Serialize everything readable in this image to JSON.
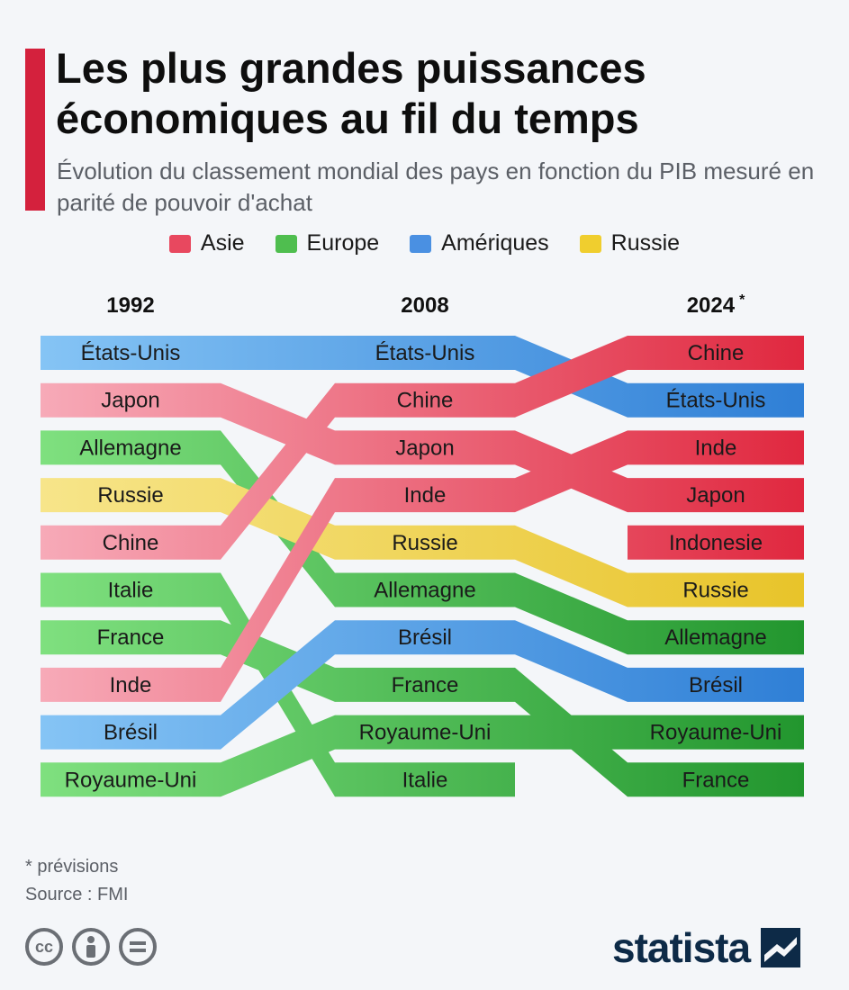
{
  "header": {
    "title": "Les plus grandes puissances économiques au fil du temps",
    "subtitle": "Évolution du classement mondial des pays en fonction du PIB mesuré en parité de pouvoir d'achat"
  },
  "legend": [
    {
      "label": "Asie",
      "color": "#e8485f"
    },
    {
      "label": "Europe",
      "color": "#4fbe4f"
    },
    {
      "label": "Amériques",
      "color": "#4a90e2"
    },
    {
      "label": "Russie",
      "color": "#f0ce2e"
    }
  ],
  "chart_data": {
    "type": "bump",
    "columns": [
      "1992",
      "2008",
      "2024"
    ],
    "column_markers": [
      "",
      "",
      "*"
    ],
    "regions": {
      "Asie": {
        "light": "#f7aab8",
        "dark": "#e0283f"
      },
      "Europe": {
        "light": "#7fe07f",
        "dark": "#22962e"
      },
      "Amériques": {
        "light": "#85c4f5",
        "dark": "#2f7fd6"
      },
      "Russie": {
        "light": "#f7e58a",
        "dark": "#e8c42a"
      }
    },
    "rankings": [
      {
        "name": "États-Unis",
        "region": "Amériques",
        "ranks": [
          1,
          1,
          2
        ]
      },
      {
        "name": "Japon",
        "region": "Asie",
        "ranks": [
          2,
          3,
          4
        ]
      },
      {
        "name": "Allemagne",
        "region": "Europe",
        "ranks": [
          3,
          6,
          7
        ]
      },
      {
        "name": "Russie",
        "region": "Russie",
        "ranks": [
          4,
          5,
          6
        ]
      },
      {
        "name": "Chine",
        "region": "Asie",
        "ranks": [
          5,
          2,
          1
        ]
      },
      {
        "name": "Italie",
        "region": "Europe",
        "ranks": [
          6,
          10,
          null
        ]
      },
      {
        "name": "France",
        "region": "Europe",
        "ranks": [
          7,
          8,
          10
        ]
      },
      {
        "name": "Inde",
        "region": "Asie",
        "ranks": [
          8,
          4,
          3
        ]
      },
      {
        "name": "Brésil",
        "region": "Amériques",
        "ranks": [
          9,
          7,
          8
        ]
      },
      {
        "name": "Royaume-Uni",
        "region": "Europe",
        "ranks": [
          10,
          9,
          9
        ]
      },
      {
        "name": "Indonesie",
        "region": "Asie",
        "ranks": [
          null,
          null,
          5
        ]
      }
    ]
  },
  "footer": {
    "note": "* prévisions",
    "source": "Source : FMI",
    "brand": "statista"
  }
}
